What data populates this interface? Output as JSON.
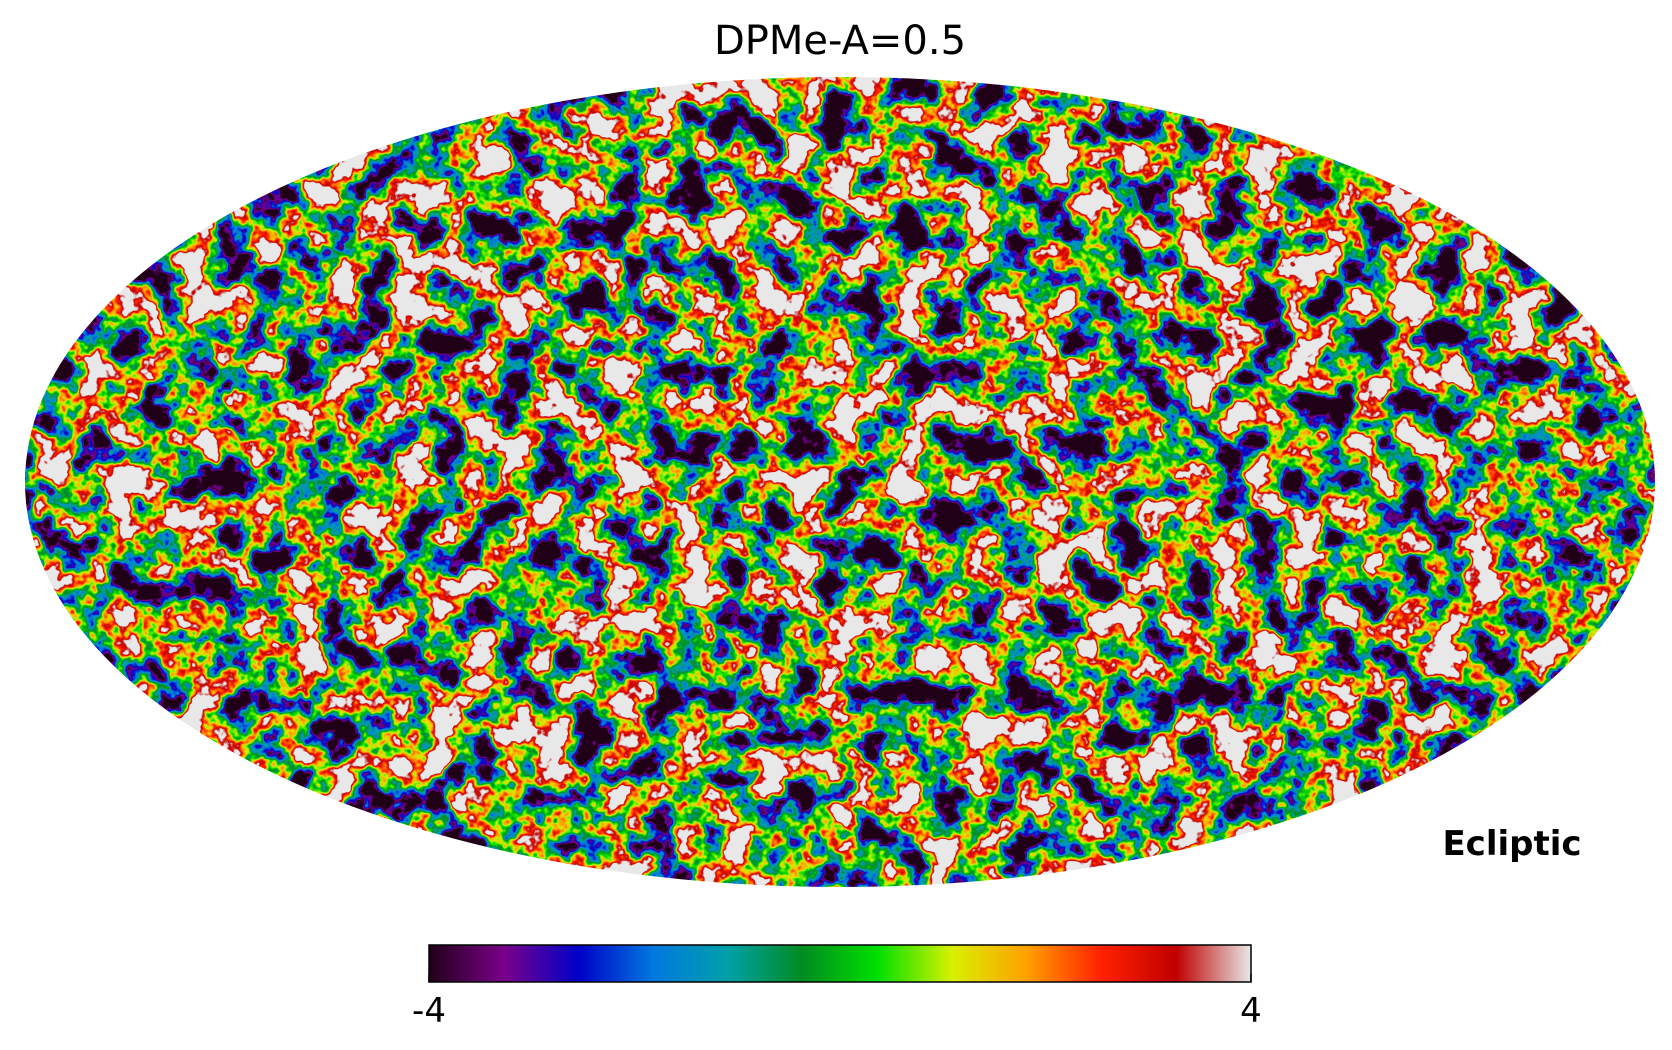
{
  "chart_data": {
    "type": "mollweide",
    "title": "DPMe-A=0.5",
    "coord_label": "Ecliptic",
    "colorbar": {
      "lim": [
        -4,
        4
      ],
      "ticks": [
        -4,
        4
      ],
      "colors": [
        "#200018",
        "#7a008a",
        "#0000c8",
        "#0078e0",
        "#00a0a8",
        "#008c20",
        "#00e000",
        "#d8f000",
        "#ffa000",
        "#ff2000",
        "#c00000",
        "#e8e8e8"
      ]
    }
  }
}
